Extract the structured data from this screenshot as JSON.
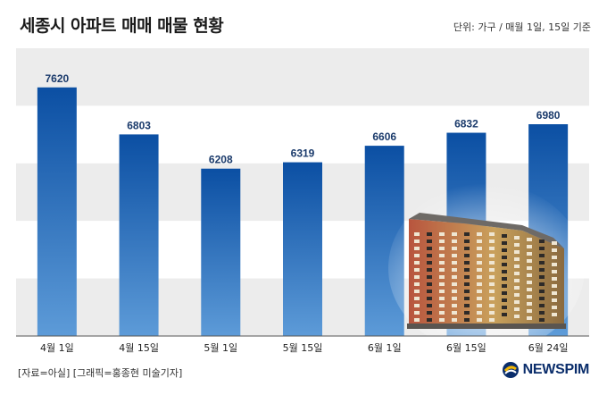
{
  "title": "세종시 아파트 매매 매물 현황",
  "unit_note": "단위: 가구 / 매월 1일, 15일 기준",
  "source_note": "[자료=아실] [그래픽=홍종현 미술기자]",
  "brand": {
    "name": "NEWSPIM",
    "icon": "newspim-logo-icon",
    "color": "#0a2d6b"
  },
  "colors": {
    "bar_top": "#0b4fa3",
    "bar_bottom": "#5d9bd8",
    "stripe": "#ececec",
    "value_label": "#1a3a6b"
  },
  "chart_data": {
    "type": "bar",
    "title": "세종시 아파트 매매 매물 현황",
    "categories": [
      "4월 1일",
      "4월 15일",
      "5월 1일",
      "5월 15일",
      "6월 1일",
      "6월 15일",
      "6월 24일"
    ],
    "values": [
      7620,
      6803,
      6208,
      6319,
      6606,
      6832,
      6980
    ],
    "data_labels": [
      "7620",
      "6803",
      "6208",
      "6319",
      "6606",
      "6832",
      "6980"
    ],
    "ylim": [
      3300,
      8300
    ],
    "grid": "alternating-bands",
    "legend": "none"
  }
}
